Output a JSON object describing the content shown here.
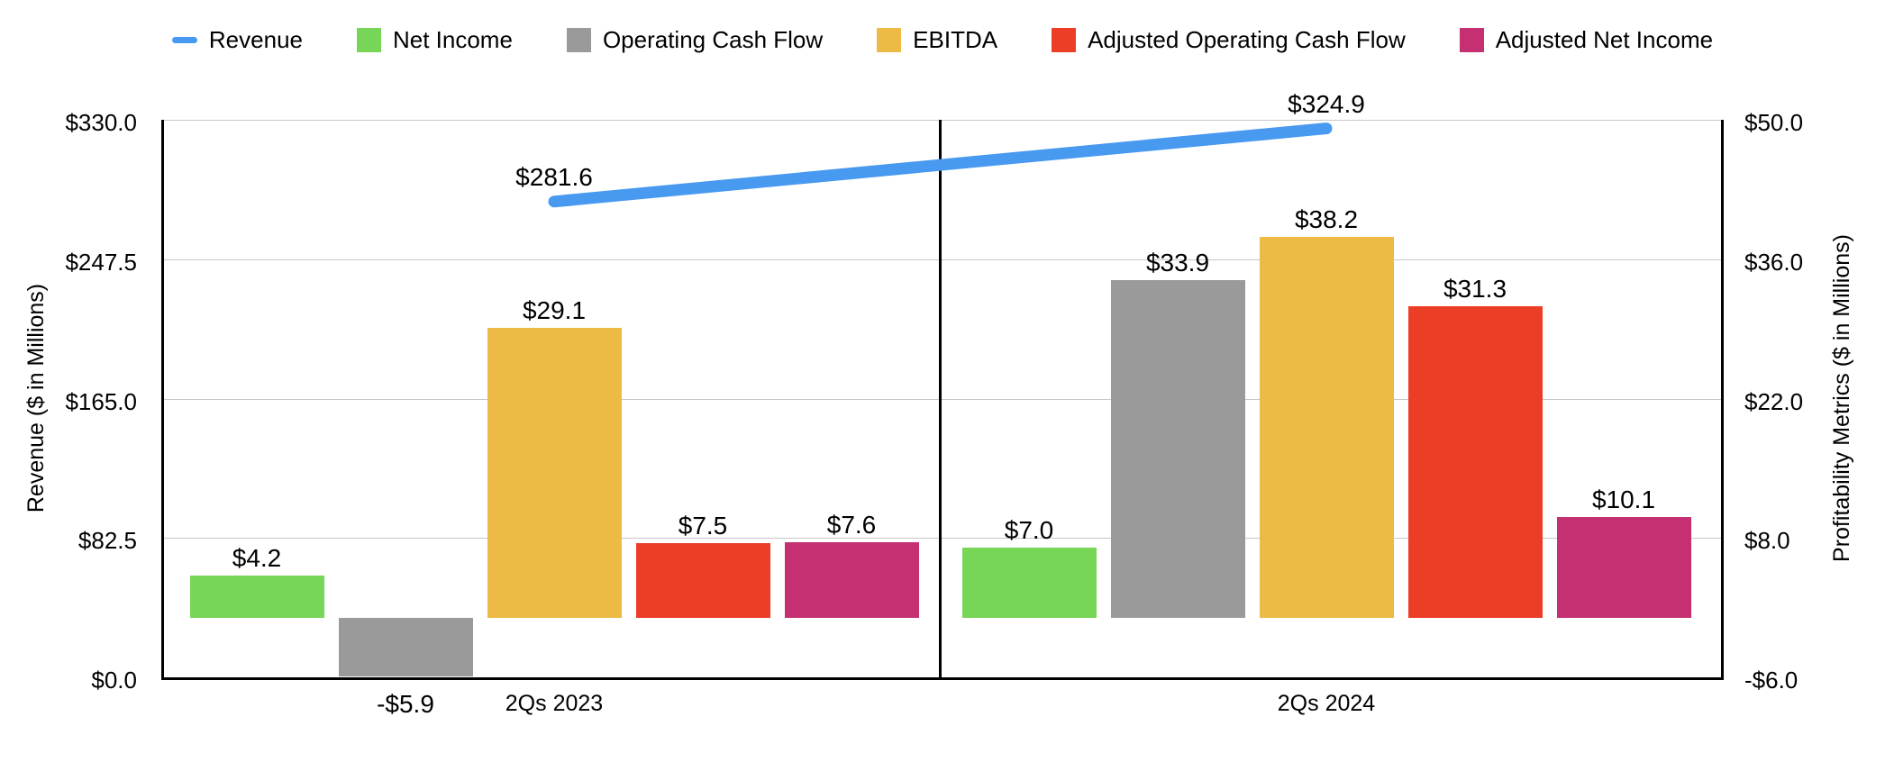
{
  "chart_data": {
    "type": "bar",
    "subtype": "grouped bars with line overlay, dual y-axes",
    "categories": [
      "2Qs 2023",
      "2Qs 2024"
    ],
    "series": [
      {
        "name": "Revenue",
        "type": "line",
        "axis": "left",
        "color": "#4899F0",
        "values": [
          281.6,
          324.9
        ],
        "labels": [
          "$281.6",
          "$324.9"
        ]
      },
      {
        "name": "Net Income",
        "type": "bar",
        "axis": "right",
        "color": "#77D657",
        "values": [
          4.2,
          7.0
        ],
        "labels": [
          "$4.2",
          "$7.0"
        ]
      },
      {
        "name": "Operating Cash Flow",
        "type": "bar",
        "axis": "right",
        "color": "#9A9A9A",
        "values": [
          -5.9,
          33.9
        ],
        "labels": [
          "-$5.9",
          "$33.9"
        ]
      },
      {
        "name": "EBITDA",
        "type": "bar",
        "axis": "right",
        "color": "#ECBA45",
        "values": [
          29.1,
          38.2
        ],
        "labels": [
          "$29.1",
          "$38.2"
        ]
      },
      {
        "name": "Adjusted Operating Cash Flow",
        "type": "bar",
        "axis": "right",
        "color": "#EC3D26",
        "values": [
          7.5,
          31.3
        ],
        "labels": [
          "$7.5",
          "$31.3"
        ]
      },
      {
        "name": "Adjusted Net Income",
        "type": "bar",
        "axis": "right",
        "color": "#C43072",
        "values": [
          7.6,
          10.1
        ],
        "labels": [
          "$7.6",
          "$10.1"
        ]
      }
    ],
    "left_axis": {
      "label": "Revenue ($ in Millions)",
      "min": 0,
      "max": 330,
      "ticks": [
        {
          "value": 330.0,
          "label": "$330.0"
        },
        {
          "value": 247.5,
          "label": "$247.5"
        },
        {
          "value": 165.0,
          "label": "$165.0"
        },
        {
          "value": 82.5,
          "label": "$82.5"
        },
        {
          "value": 0.0,
          "label": "$0.0"
        }
      ]
    },
    "right_axis": {
      "label": "Profitability Metrics ($ in Millions)",
      "min": -6,
      "max": 50,
      "ticks": [
        {
          "value": 50.0,
          "label": "$50.0"
        },
        {
          "value": 36.0,
          "label": "$36.0"
        },
        {
          "value": 22.0,
          "label": "$22.0"
        },
        {
          "value": 8.0,
          "label": "$8.0"
        },
        {
          "value": -6.0,
          "label": "-$6.0"
        }
      ]
    },
    "legend_position": "top",
    "grid": true
  },
  "styles": {
    "background": "#FFFFFF",
    "grid_color": "#C7C7C7",
    "axis_color": "#000000",
    "text_color": "#000000"
  }
}
